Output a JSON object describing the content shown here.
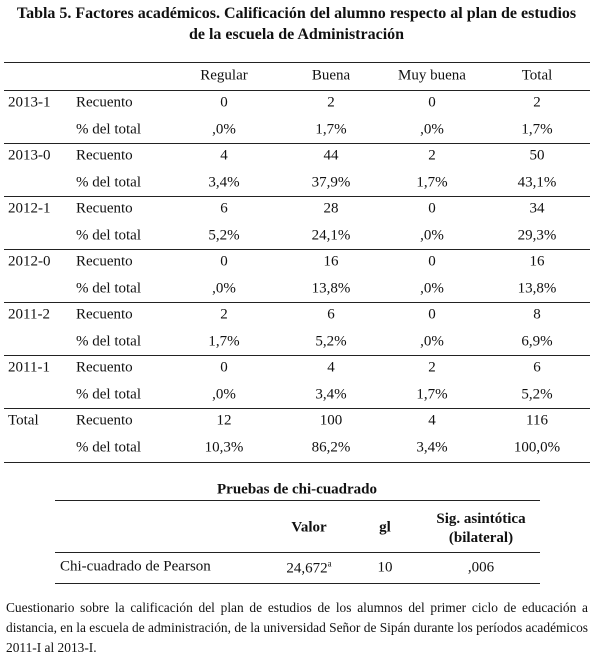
{
  "title": "Tabla 5. Factores académicos. Calificación del alumno respecto al plan de estudios de la escuela de Administración",
  "table": {
    "columns": [
      "Regular",
      "Buena",
      "Muy buena",
      "Total"
    ],
    "groups": [
      {
        "label": "2013-1",
        "rows": [
          {
            "measure": "Recuento",
            "cells": [
              "0",
              "2",
              "0",
              "2"
            ]
          },
          {
            "measure": "% del total",
            "cells": [
              ",0%",
              "1,7%",
              ",0%",
              "1,7%"
            ]
          }
        ]
      },
      {
        "label": "2013-0",
        "rows": [
          {
            "measure": "Recuento",
            "cells": [
              "4",
              "44",
              "2",
              "50"
            ]
          },
          {
            "measure": "% del total",
            "cells": [
              "3,4%",
              "37,9%",
              "1,7%",
              "43,1%"
            ]
          }
        ]
      },
      {
        "label": "2012-1",
        "rows": [
          {
            "measure": "Recuento",
            "cells": [
              "6",
              "28",
              "0",
              "34"
            ]
          },
          {
            "measure": "% del total",
            "cells": [
              "5,2%",
              "24,1%",
              ",0%",
              "29,3%"
            ]
          }
        ]
      },
      {
        "label": "2012-0",
        "rows": [
          {
            "measure": "Recuento",
            "cells": [
              "0",
              "16",
              "0",
              "16"
            ]
          },
          {
            "measure": "% del total",
            "cells": [
              ",0%",
              "13,8%",
              ",0%",
              "13,8%"
            ]
          }
        ]
      },
      {
        "label": "2011-2",
        "rows": [
          {
            "measure": "Recuento",
            "cells": [
              "2",
              "6",
              "0",
              "8"
            ]
          },
          {
            "measure": "% del total",
            "cells": [
              "1,7%",
              "5,2%",
              ",0%",
              "6,9%"
            ]
          }
        ]
      },
      {
        "label": "2011-1",
        "rows": [
          {
            "measure": "Recuento",
            "cells": [
              "0",
              "4",
              "2",
              "6"
            ]
          },
          {
            "measure": "% del total",
            "cells": [
              ",0%",
              "3,4%",
              "1,7%",
              "5,2%"
            ]
          }
        ]
      },
      {
        "label": "Total",
        "rows": [
          {
            "measure": "Recuento",
            "cells": [
              "12",
              "100",
              "4",
              "116"
            ]
          },
          {
            "measure": "% del total",
            "cells": [
              "10,3%",
              "86,2%",
              "3,4%",
              "100,0%"
            ]
          }
        ]
      }
    ]
  },
  "chi_table": {
    "title": "Pruebas de chi-cuadrado",
    "columns": [
      "Valor",
      "gl",
      "Sig. asintótica (bilateral)"
    ],
    "rows": [
      {
        "label": "Chi-cuadrado de Pearson",
        "value": "24,672",
        "value_note": "a",
        "gl": "10",
        "sig": ",006"
      }
    ]
  },
  "footnote": "Cuestionario sobre la calificación del plan de estudios de los alumnos del primer ciclo de educación a distancia, en la escuela de administración, de la universidad Señor de Sipán durante los períodos académicos 2011-I al 2013-I."
}
